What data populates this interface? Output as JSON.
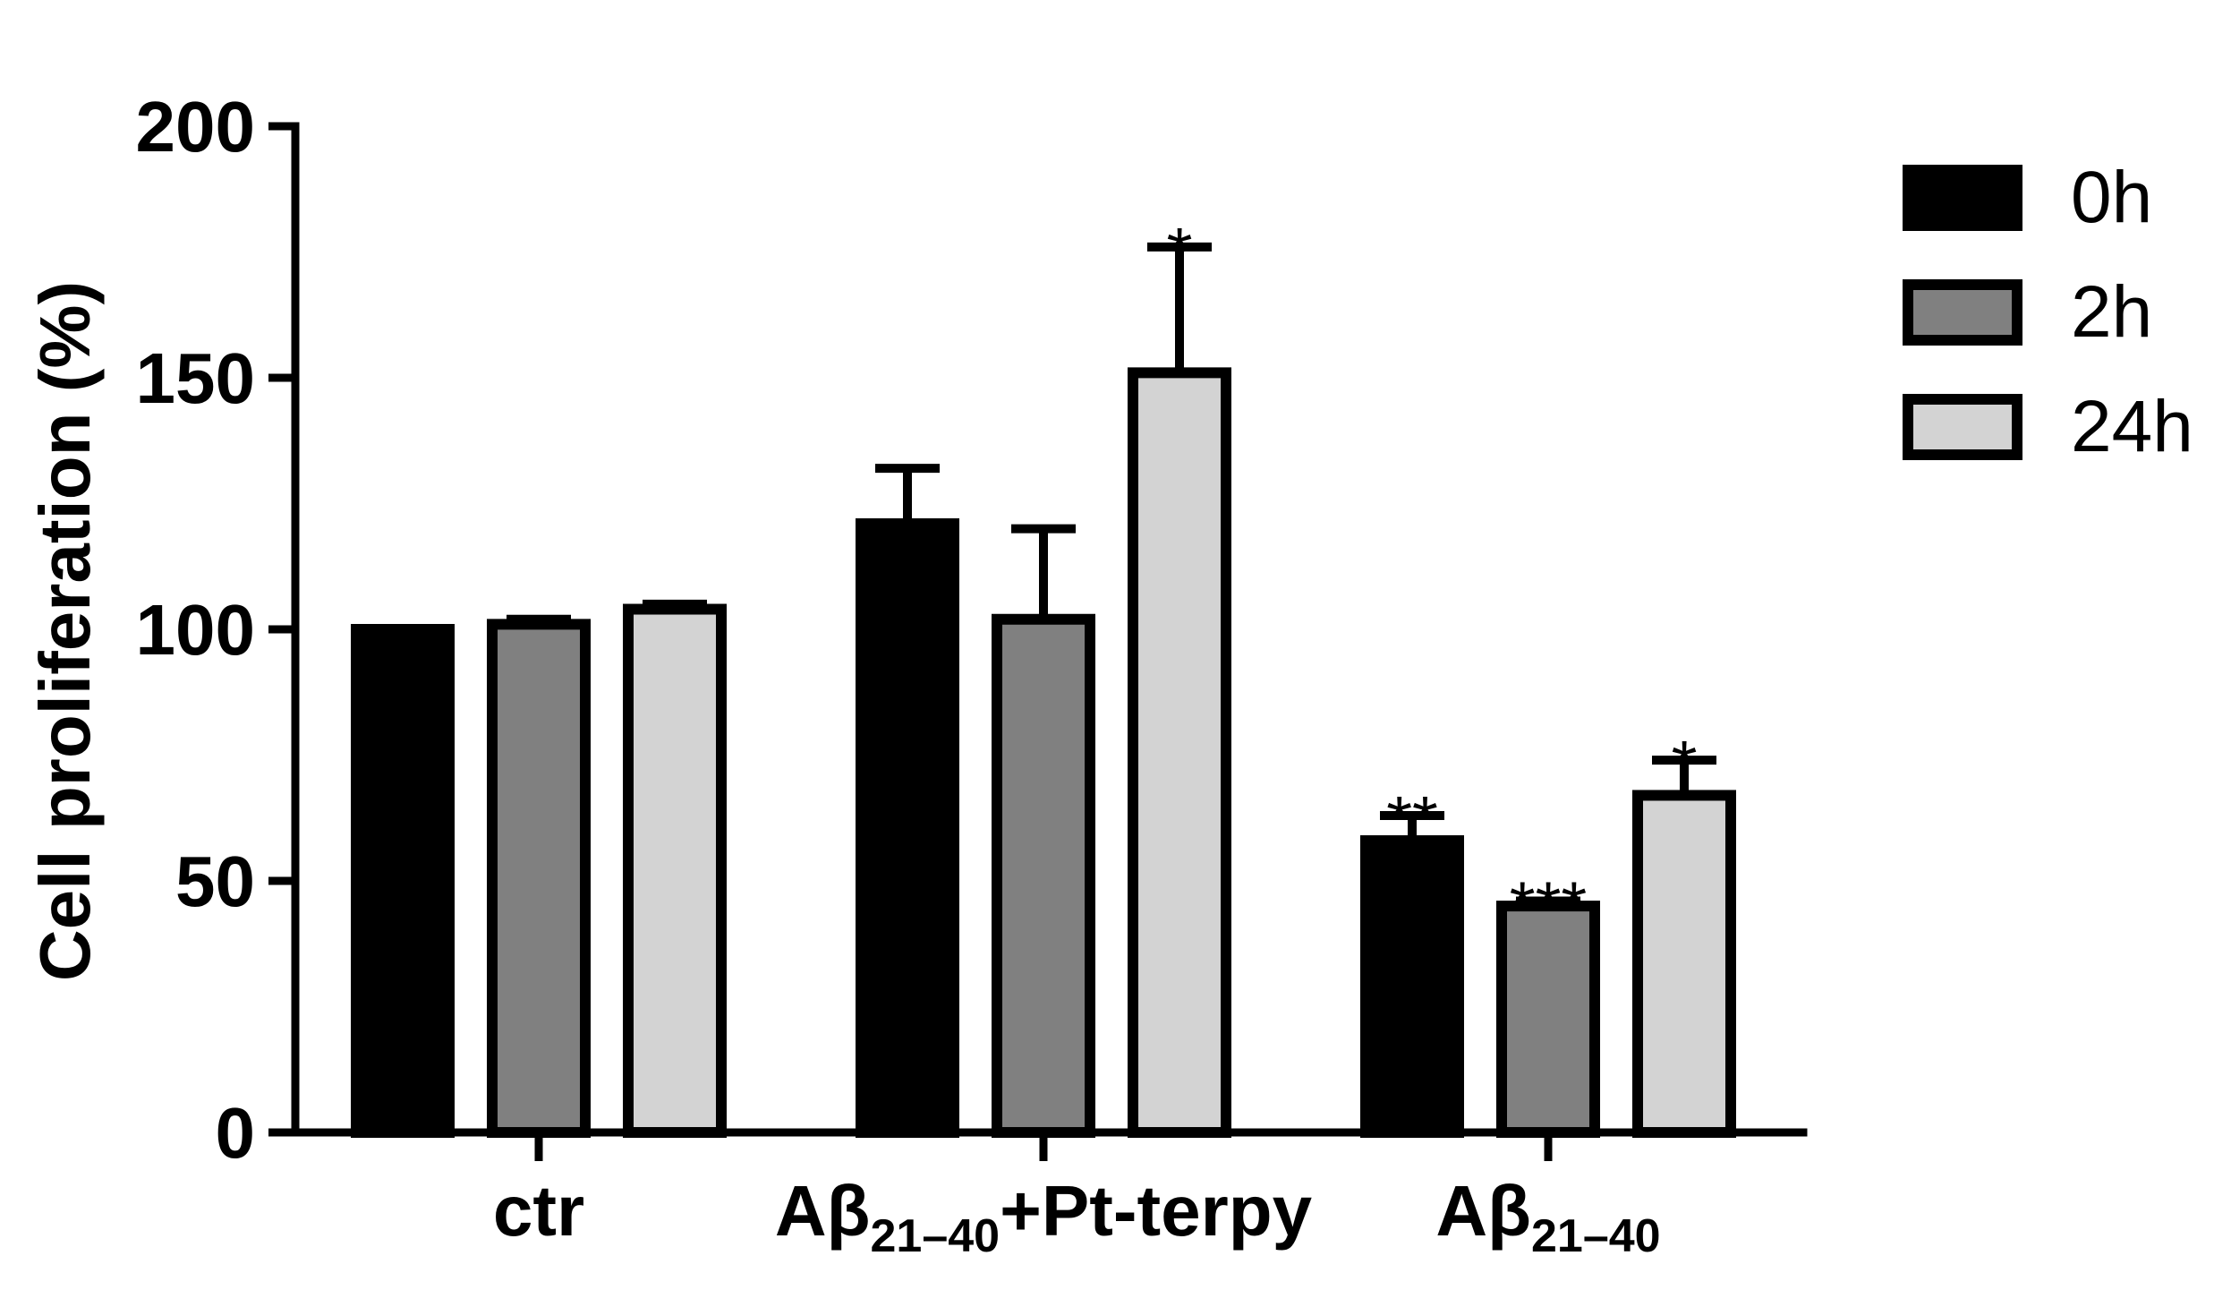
{
  "chart_data": {
    "type": "bar",
    "title": "",
    "xlabel": "",
    "ylabel": "Cell proliferation (%)",
    "ylim": [
      0,
      200
    ],
    "yticks": [
      0,
      50,
      100,
      150,
      200
    ],
    "grid": false,
    "legend_position": "top-right",
    "categories": [
      {
        "main": "ctr",
        "sub": "",
        "suffix": ""
      },
      {
        "main": "Aβ",
        "sub": "21–40",
        "suffix": "+Pt-terpy"
      },
      {
        "main": "Aβ",
        "sub": "21–40",
        "suffix": ""
      }
    ],
    "series": [
      {
        "name": "0h",
        "color": "#000000",
        "values": [
          100,
          121,
          58
        ],
        "errors": [
          0,
          11,
          5
        ],
        "significance": [
          "",
          "",
          "**"
        ]
      },
      {
        "name": "2h",
        "color": "#808080",
        "values": [
          101,
          102,
          45
        ],
        "errors": [
          1,
          18,
          1
        ],
        "significance": [
          "",
          "",
          "***"
        ]
      },
      {
        "name": "24h",
        "color": "#d3d3d3",
        "values": [
          104,
          151,
          67
        ],
        "errors": [
          1,
          25,
          7
        ],
        "significance": [
          "",
          "*",
          "*"
        ]
      }
    ]
  }
}
